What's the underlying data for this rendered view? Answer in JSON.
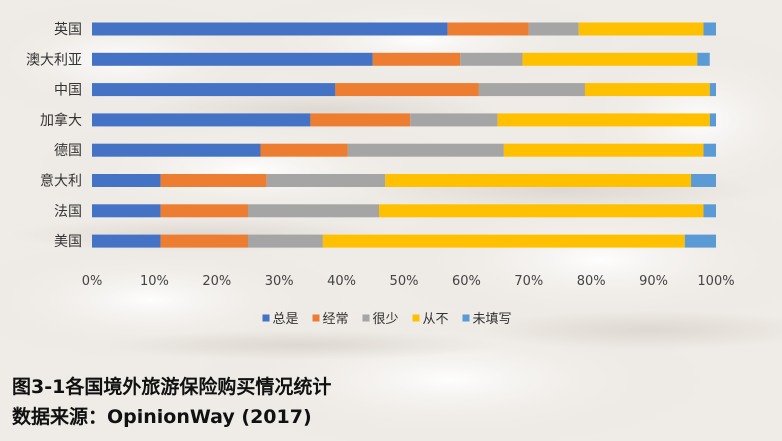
{
  "chart_data": {
    "type": "bar",
    "orientation": "horizontal",
    "stacked": true,
    "percent": true,
    "categories": [
      "英国",
      "澳大利亚",
      "中国",
      "加拿大",
      "德国",
      "意大利",
      "法国",
      "美国"
    ],
    "series": [
      {
        "name": "总是",
        "color": "#4472c4",
        "values": [
          57,
          45,
          39,
          35,
          27,
          11,
          11,
          11
        ]
      },
      {
        "name": "经常",
        "color": "#ed7d31",
        "values": [
          13,
          14,
          23,
          16,
          14,
          17,
          14,
          14
        ]
      },
      {
        "name": "很少",
        "color": "#a5a5a5",
        "values": [
          8,
          10,
          17,
          14,
          25,
          19,
          21,
          12
        ]
      },
      {
        "name": "从不",
        "color": "#ffc000",
        "values": [
          20,
          28,
          20,
          34,
          32,
          49,
          52,
          58
        ]
      },
      {
        "name": "未填写",
        "color": "#5b9bd5",
        "values": [
          2,
          2,
          1,
          1,
          2,
          4,
          2,
          5
        ]
      }
    ],
    "x_ticks": [
      "0%",
      "10%",
      "20%",
      "30%",
      "40%",
      "50%",
      "60%",
      "70%",
      "80%",
      "90%",
      "100%"
    ],
    "xlim": [
      0,
      100
    ],
    "legend_position": "bottom",
    "grid": false
  },
  "caption": {
    "title": "图3-1各国境外旅游保险购买情况统计",
    "source": "数据来源：OpinionWay (2017)"
  }
}
